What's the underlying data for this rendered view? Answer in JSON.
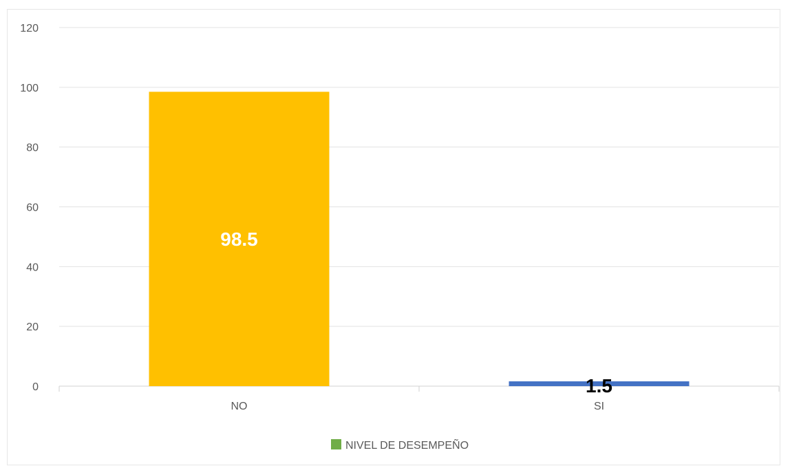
{
  "chart_data": {
    "type": "bar",
    "categories": [
      "NO",
      "SI"
    ],
    "series": [
      {
        "name": "NIVEL DE DESEMPEÑO",
        "values": [
          98.5,
          1.5
        ]
      }
    ],
    "data_labels": [
      "98.5",
      "1.5"
    ],
    "bar_colors": [
      "#FFC000",
      "#4472C4"
    ],
    "data_label_colors": [
      "#FFFFFF",
      "#000000"
    ],
    "legend_swatch_color": "#70AD47",
    "ylim": [
      0,
      120
    ],
    "yticks": [
      0,
      20,
      40,
      60,
      80,
      100,
      120
    ],
    "grid": true,
    "legend_position": "bottom",
    "title": "",
    "xlabel": "",
    "ylabel": ""
  }
}
